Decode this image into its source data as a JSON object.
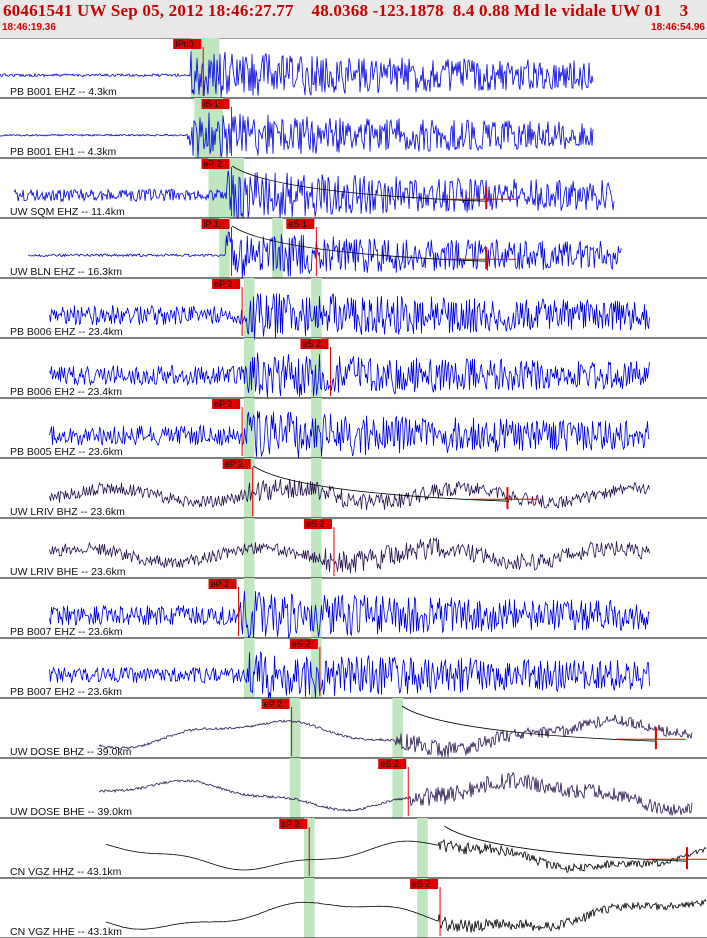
{
  "header": {
    "title": "60461541 UW Sep 05, 2012 18:46:27.77    48.0368 -123.1878  8.4 0.88 Md le vidale UW 01    3",
    "start_time": "18:46:19.36",
    "end_time": "18:46:54.96"
  },
  "colors": {
    "trace_blue": "#0000e0",
    "trace_purple": "#2a1650",
    "trace_black": "#000000",
    "pick_red": "#e00000",
    "window_green": "#bfe6bf"
  },
  "panels": [
    {
      "label": "PB B001 EHZ -- 4.3km",
      "color": "trace_blue",
      "start": 0.0,
      "end": 0.84,
      "quiet": 0.06,
      "onset": 0.27,
      "active": 0.55,
      "green": [
        0.27,
        0.31
      ],
      "picks": [
        {
          "label": "IPd0",
          "pos": 0.245
        }
      ]
    },
    {
      "label": "PB B001 EH1 -- 4.3km",
      "color": "trace_blue",
      "start": 0.0,
      "end": 0.84,
      "quiet": 0.04,
      "onset": 0.265,
      "active": 0.5,
      "green": [
        0.275,
        0.315
      ],
      "picks": [
        {
          "label": "iS 1",
          "pos": 0.285
        }
      ]
    },
    {
      "label": "UW SQM EHZ -- 11.4km",
      "color": "trace_blue",
      "start": 0.02,
      "end": 0.87,
      "quiet": 0.28,
      "onset": 0.32,
      "active": 0.55,
      "green": [
        0.295,
        0.345
      ],
      "picks": [
        {
          "label": "eP 2",
          "pos": 0.285
        }
      ],
      "coda": true
    },
    {
      "label": "UW BLN EHZ -- 16.3km",
      "color": "trace_blue",
      "start": 0.04,
      "end": 0.88,
      "quiet": 0.06,
      "onset": 0.32,
      "active": 0.5,
      "green": [
        0.31,
        0.325,
        0.385,
        0.4
      ],
      "picks": [
        {
          "label": "iP 1",
          "pos": 0.285
        },
        {
          "label": "eS 1",
          "pos": 0.405
        }
      ],
      "coda": true
    },
    {
      "label": "PB B006 EHZ -- 23.4km",
      "color": "trace_blue",
      "start": 0.07,
      "end": 0.92,
      "quiet": 0.45,
      "onset": 0.35,
      "active": 0.55,
      "green": [
        0.345,
        0.36,
        0.44,
        0.455
      ],
      "picks": [
        {
          "label": "eP 2",
          "pos": 0.3
        }
      ]
    },
    {
      "label": "PB B006 EH2 -- 23.4km",
      "color": "trace_blue",
      "start": 0.07,
      "end": 0.92,
      "quiet": 0.45,
      "onset": 0.35,
      "active": 0.5,
      "green": [
        0.345,
        0.36,
        0.44,
        0.455
      ],
      "picks": [
        {
          "label": "eS 2",
          "pos": 0.425
        }
      ]
    },
    {
      "label": "PB B005 EHZ -- 23.6km",
      "color": "trace_blue",
      "start": 0.07,
      "end": 0.92,
      "quiet": 0.45,
      "onset": 0.35,
      "active": 0.55,
      "green": [
        0.345,
        0.36,
        0.44,
        0.455
      ],
      "picks": [
        {
          "label": "eP 2",
          "pos": 0.3
        }
      ]
    },
    {
      "label": "UW LRIV BHZ -- 23.6km",
      "color": "trace_purple",
      "start": 0.07,
      "end": 0.92,
      "quiet": 0.5,
      "onset": 0.35,
      "active": 0.35,
      "green": [
        0.345,
        0.36,
        0.44,
        0.455
      ],
      "picks": [
        {
          "label": "eP 2",
          "pos": 0.315
        }
      ],
      "coda": true,
      "noisy": true
    },
    {
      "label": "UW LRIV BHE -- 23.6km",
      "color": "trace_purple",
      "start": 0.07,
      "end": 0.92,
      "quiet": 0.5,
      "onset": 0.46,
      "active": 0.45,
      "green": [
        0.345,
        0.36,
        0.44,
        0.455
      ],
      "picks": [
        {
          "label": "eS 2",
          "pos": 0.43
        }
      ],
      "noisy": true
    },
    {
      "label": "PB B007 EHZ -- 23.6km",
      "color": "trace_blue",
      "start": 0.07,
      "end": 0.92,
      "quiet": 0.45,
      "onset": 0.34,
      "active": 0.55,
      "green": [
        0.345,
        0.36,
        0.44,
        0.455
      ],
      "picks": [
        {
          "label": "eP 2",
          "pos": 0.295
        }
      ]
    },
    {
      "label": "PB B007 EH2 -- 23.6km",
      "color": "trace_blue",
      "start": 0.07,
      "end": 0.92,
      "quiet": 0.35,
      "onset": 0.35,
      "active": 0.55,
      "green": [
        0.345,
        0.36,
        0.44,
        0.455
      ],
      "picks": [
        {
          "label": "eS 2",
          "pos": 0.41
        }
      ]
    },
    {
      "label": "UW DOSE BHZ -- 39.0km",
      "color": "trace_purple",
      "start": 0.14,
      "end": 0.98,
      "quiet": 0.12,
      "onset": 0.56,
      "active": 0.3,
      "green": [
        0.41,
        0.425,
        0.555,
        0.57
      ],
      "picks": [
        {
          "label": "eP 2",
          "pos": 0.37
        }
      ],
      "coda": true,
      "wavy": true
    },
    {
      "label": "UW DOSE BHE -- 39.0km",
      "color": "trace_purple",
      "start": 0.14,
      "end": 0.98,
      "quiet": 0.12,
      "onset": 0.58,
      "active": 0.4,
      "green": [
        0.41,
        0.425,
        0.555,
        0.57
      ],
      "picks": [
        {
          "label": "eS 2",
          "pos": 0.535
        }
      ],
      "wavy": true
    },
    {
      "label": "CN VGZ HHZ -- 43.1km",
      "color": "trace_black",
      "start": 0.15,
      "end": 1.0,
      "quiet": 0.0,
      "onset": 0.62,
      "active": 0.06,
      "green": [
        0.43,
        0.445,
        0.59,
        0.605
      ],
      "picks": [
        {
          "label": "eP 2",
          "pos": 0.395
        }
      ],
      "coda": true,
      "wavy": true
    },
    {
      "label": "CN VGZ HHE -- 43.1km",
      "color": "trace_black",
      "start": 0.15,
      "end": 1.0,
      "quiet": 0.02,
      "onset": 0.62,
      "active": 0.12,
      "green": [
        0.43,
        0.445,
        0.59,
        0.605
      ],
      "picks": [
        {
          "label": "eS 2",
          "pos": 0.58
        }
      ],
      "wavy": true
    }
  ]
}
